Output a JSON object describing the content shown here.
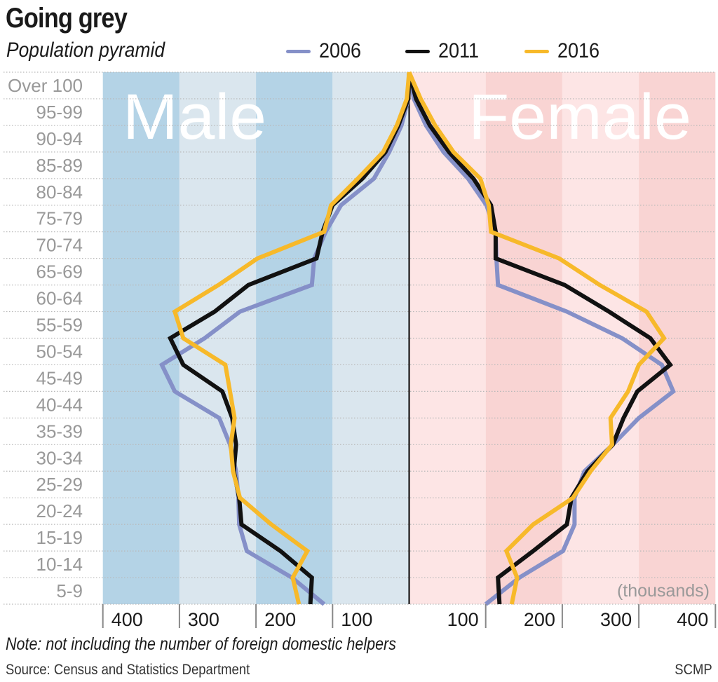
{
  "header": {
    "title": "Going grey",
    "subtitle": "Population pyramid"
  },
  "footer": {
    "note": "Note: not including the number of foreign domestic helpers",
    "source": "Source: Census and Statistics Department",
    "credit": "SCMP"
  },
  "chart_data": {
    "type": "line",
    "title": "Going grey",
    "subtitle": "Population pyramid",
    "xlabel": "(thousands)",
    "ylabel": "",
    "side_labels": {
      "left": "Male",
      "right": "Female"
    },
    "x_range_male": [
      400,
      0
    ],
    "x_range_female": [
      0,
      400
    ],
    "x_ticks_male": [
      "400",
      "300",
      "200",
      "100"
    ],
    "x_ticks_female": [
      "100",
      "200",
      "300",
      "400"
    ],
    "x_tick_values": [
      400,
      300,
      200,
      100
    ],
    "grid": true,
    "legend_position": "top",
    "categories": [
      "Over 100",
      "95-99",
      "90-94",
      "85-89",
      "80-84",
      "75-79",
      "70-74",
      "65-69",
      "60-64",
      "55-59",
      "50-54",
      "45-49",
      "40-44",
      "35-39",
      "30-34",
      "25-29",
      "20-24",
      "15-19",
      "10-14",
      "5-9",
      ""
    ],
    "series": [
      {
        "name": "2006",
        "color": "#8590c8",
        "male": [
          0,
          1,
          10,
          26,
          46,
          89,
          109,
          124,
          127,
          221,
          267,
          323,
          306,
          248,
          234,
          226,
          223,
          222,
          212,
          153,
          111
        ],
        "female": [
          0,
          6,
          22,
          45,
          77,
          101,
          113,
          114,
          116,
          206,
          278,
          330,
          345,
          300,
          266,
          229,
          216,
          216,
          201,
          144,
          100
        ]
      },
      {
        "name": "2011",
        "color": "#111111",
        "male": [
          0,
          1,
          14,
          31,
          61,
          100,
          113,
          121,
          210,
          254,
          312,
          295,
          244,
          231,
          226,
          229,
          222,
          219,
          168,
          127,
          129
        ],
        "female": [
          0,
          9,
          27,
          52,
          84,
          107,
          113,
          113,
          203,
          261,
          315,
          341,
          298,
          280,
          266,
          233,
          212,
          206,
          162,
          116,
          118
        ]
      },
      {
        "name": "2016",
        "color": "#f7b92a",
        "male": [
          0,
          3,
          16,
          34,
          67,
          102,
          111,
          198,
          249,
          306,
          295,
          240,
          234,
          228,
          233,
          230,
          221,
          180,
          133,
          152,
          144
        ],
        "female": [
          0,
          15,
          34,
          58,
          93,
          104,
          107,
          196,
          249,
          310,
          333,
          300,
          286,
          263,
          265,
          237,
          214,
          162,
          127,
          141,
          134
        ]
      }
    ],
    "background_colors": {
      "male_dark": "#b4d3e6",
      "male_light": "#dae6ee",
      "female_light": "#fde5e5",
      "female_dark": "#f9d4d3"
    }
  }
}
